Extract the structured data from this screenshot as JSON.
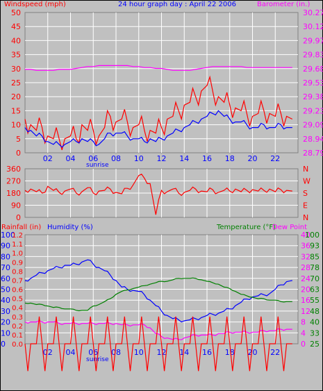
{
  "title": "24 hour graph day : April 22 2006",
  "colors": {
    "background": "#c0c0c0",
    "plot_bg": "#c0c0c0",
    "grid": "#ffffff",
    "frame": "#808080",
    "wind": "#ff0000",
    "gust_avg": "#0000ff",
    "barometer": "#ff00ff",
    "direction": "#ff0000",
    "rainfall": "#ff0000",
    "humidity": "#0000ff",
    "temperature": "#008000",
    "dewpoint": "#ff00ff"
  },
  "x_ticks": [
    "02",
    "04",
    "06",
    "08",
    "10",
    "12",
    "14",
    "16",
    "18",
    "20",
    "22"
  ],
  "sunrise_label": "sunrise",
  "chart_data": [
    {
      "type": "line",
      "name": "wind_and_barometer",
      "left_label": "Windspeed (mph)",
      "right_label": "Barometer (in.)",
      "x": [
        0,
        0.5,
        1,
        1.5,
        2,
        2.5,
        3,
        3.5,
        4,
        4.5,
        5,
        5.5,
        6,
        6.5,
        7,
        7.5,
        8,
        8.5,
        9,
        9.5,
        10,
        10.5,
        11,
        11.5,
        12,
        12.5,
        13,
        13.5,
        14,
        14.5,
        15,
        15.5,
        16,
        16.5,
        17,
        17.5,
        18,
        18.5,
        19,
        19.5,
        20,
        20.5,
        21,
        21.5,
        22,
        22.5,
        23,
        23.5
      ],
      "y_left_ticks": [
        0,
        5,
        10,
        15,
        20,
        25,
        30,
        35,
        40,
        45,
        50
      ],
      "y_right_ticks": [
        "28.79",
        "28.94",
        "29.09",
        "29.23",
        "29.38",
        "29.53",
        "29.68",
        "29.83",
        "29.97",
        "30.12",
        "30.27"
      ],
      "ylim_left": [
        0,
        50
      ],
      "ylim_right": [
        28.79,
        30.27
      ],
      "series": [
        {
          "key": "wind",
          "axis": "left",
          "values": [
            12,
            10,
            8,
            9,
            6,
            5,
            5,
            5,
            6,
            5,
            10,
            8,
            8,
            6,
            9,
            13,
            11,
            12,
            11,
            9,
            10,
            8,
            8,
            7,
            9,
            12,
            13,
            15,
            17,
            18,
            20,
            22,
            24,
            22,
            20,
            18,
            17,
            16,
            15,
            14,
            13,
            14,
            15,
            14,
            13,
            14,
            13,
            12
          ]
        },
        {
          "key": "gust_avg",
          "axis": "left",
          "values": [
            9,
            8,
            6,
            6,
            4,
            3,
            3,
            3,
            4,
            4,
            5,
            4,
            4,
            3,
            5,
            7,
            7,
            7,
            6,
            5,
            5,
            4,
            5,
            4,
            5,
            6,
            7,
            8,
            9,
            10,
            11,
            12,
            13,
            14,
            15,
            13,
            12,
            11,
            11,
            10,
            9,
            9,
            10,
            9,
            9,
            10,
            9,
            9
          ]
        },
        {
          "key": "barometer",
          "axis": "right",
          "values": [
            29.67,
            29.67,
            29.66,
            29.66,
            29.66,
            29.66,
            29.67,
            29.67,
            29.67,
            29.68,
            29.69,
            29.7,
            29.7,
            29.71,
            29.71,
            29.71,
            29.71,
            29.71,
            29.71,
            29.7,
            29.7,
            29.69,
            29.69,
            29.68,
            29.68,
            29.67,
            29.66,
            29.66,
            29.66,
            29.66,
            29.67,
            29.68,
            29.69,
            29.7,
            29.7,
            29.7,
            29.7,
            29.7,
            29.7,
            29.69,
            29.69,
            29.69,
            29.69,
            29.69,
            29.69,
            29.69,
            29.69,
            29.69
          ]
        }
      ]
    },
    {
      "type": "line",
      "name": "wind_direction",
      "left_ticks": [
        "360",
        "270",
        "180",
        "90",
        "0"
      ],
      "right_ticks": [
        "N",
        "W",
        "S",
        "E",
        "N"
      ],
      "ylim": [
        0,
        360
      ],
      "x": [
        0,
        0.5,
        1,
        1.5,
        2,
        2.5,
        3,
        3.5,
        4,
        4.5,
        5,
        5.5,
        6,
        6.5,
        7,
        7.5,
        8,
        8.5,
        9,
        9.5,
        10,
        10.5,
        11,
        11.5,
        12,
        12.5,
        13,
        13.5,
        14,
        14.5,
        15,
        15.5,
        16,
        16.5,
        17,
        17.5,
        18,
        18.5,
        19,
        19.5,
        20,
        20.5,
        21,
        21.5,
        22,
        22.5,
        23,
        23.5
      ],
      "series": [
        {
          "key": "direction",
          "values": [
            200,
            210,
            190,
            180,
            230,
            200,
            185,
            195,
            210,
            180,
            190,
            220,
            180,
            195,
            200,
            210,
            185,
            175,
            215,
            240,
            310,
            290,
            250,
            20,
            200,
            190,
            210,
            180,
            185,
            200,
            210,
            195,
            190,
            205,
            185,
            200,
            195,
            210,
            190,
            200,
            205,
            195,
            200,
            210,
            190,
            205,
            200,
            195
          ]
        }
      ]
    },
    {
      "type": "line",
      "name": "rain_humidity_temperature",
      "labels": {
        "rainfall": "Rainfall (in)",
        "humidity": "Humidity (%)",
        "temperature": "Temperature (°F)",
        "dewpoint": "Dew Point"
      },
      "rain_ticks": [
        "0.0",
        "0.1",
        "0.2",
        "0.3",
        "0.4",
        "0.5",
        "0.6",
        "0.7",
        "0.8",
        "0.9",
        "1.0",
        "1.1",
        "1.2"
      ],
      "humidity_ticks": [
        "0",
        "10",
        "20",
        "30",
        "40",
        "50",
        "60",
        "70",
        "80",
        "90",
        "100"
      ],
      "temp_c_ticks": [
        "0",
        "4",
        "8",
        "12",
        "16",
        "20",
        "24",
        "28",
        "32",
        "36",
        "40"
      ],
      "temp_f_ticks": [
        "25",
        "33",
        "40",
        "48",
        "55",
        "63",
        "70",
        "78",
        "85",
        "93",
        "100"
      ],
      "x": [
        0,
        0.5,
        1,
        1.5,
        2,
        2.5,
        3,
        3.5,
        4,
        4.5,
        5,
        5.5,
        6,
        6.5,
        7,
        7.5,
        8,
        8.5,
        9,
        9.5,
        10,
        10.5,
        11,
        11.5,
        12,
        12.5,
        13,
        13.5,
        14,
        14.5,
        15,
        15.5,
        16,
        16.5,
        17,
        17.5,
        18,
        18.5,
        19,
        19.5,
        20,
        20.5,
        21,
        21.5,
        22,
        22.5,
        23,
        23.5
      ],
      "series": [
        {
          "key": "humidity",
          "axis": "humidity",
          "ylim": [
            0,
            100
          ],
          "values": [
            58,
            60,
            63,
            65,
            67,
            69,
            70,
            72,
            72,
            73,
            75,
            77,
            73,
            70,
            67,
            63,
            58,
            52,
            50,
            49,
            48,
            45,
            40,
            35,
            30,
            26,
            23,
            22,
            21,
            22,
            23,
            24,
            26,
            27,
            28,
            30,
            32,
            35,
            38,
            41,
            43,
            44,
            45,
            46,
            50,
            54,
            57,
            58
          ]
        },
        {
          "key": "temperature",
          "axis": "temp_f",
          "ylim": [
            25,
            100
          ],
          "values": [
            53,
            53,
            52,
            52,
            51,
            50,
            50,
            49,
            49,
            48,
            48,
            48,
            51,
            52,
            54,
            56,
            59,
            61,
            62,
            63,
            64,
            65,
            66,
            67,
            68,
            68,
            69,
            70,
            70,
            70,
            70,
            69,
            68,
            67,
            66,
            64,
            63,
            61,
            59,
            58,
            57,
            56,
            56,
            55,
            55,
            54,
            54,
            54
          ]
        },
        {
          "key": "dewpoint",
          "axis": "temp_f",
          "ylim": [
            25,
            100
          ],
          "values": [
            40,
            40,
            40,
            40,
            40,
            40,
            39,
            39,
            39,
            39,
            39,
            39,
            39,
            39,
            39,
            39,
            39,
            38,
            38,
            38,
            38,
            38,
            36,
            32,
            30,
            29,
            28,
            28,
            29,
            30,
            31,
            31,
            31,
            31,
            32,
            32,
            33,
            33,
            33,
            33,
            33,
            33,
            34,
            34,
            34,
            35,
            35,
            35
          ]
        },
        {
          "key": "rainfall",
          "axis": "rain",
          "ylim": [
            0,
            1.2
          ],
          "values": [
            0,
            0,
            0,
            0,
            0,
            0,
            0,
            0,
            0,
            0,
            0,
            0,
            0,
            0,
            0,
            0,
            0,
            0,
            0,
            0,
            0,
            0,
            0,
            0,
            0,
            0,
            0,
            0,
            0,
            0,
            0,
            0,
            0,
            0,
            0,
            0,
            0,
            0,
            0,
            0,
            0,
            0,
            0,
            0,
            0,
            0,
            0,
            0
          ]
        }
      ]
    }
  ]
}
